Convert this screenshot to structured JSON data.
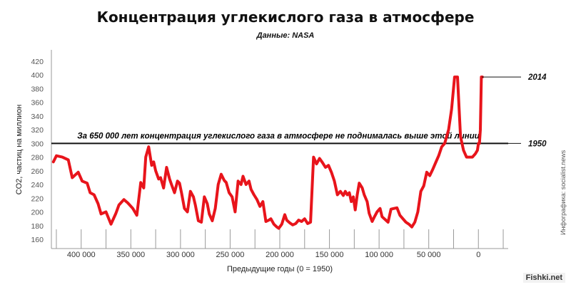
{
  "chart_data": {
    "type": "line",
    "title": "Концентрация углекислого газа в атмосфере",
    "subtitle": "Данные: NASA",
    "xlabel": "Предыдущие годы (0 = 1950)",
    "ylabel": "CO2, частиц на миллион",
    "xlim": [
      430000,
      -30000
    ],
    "ylim": [
      160,
      420
    ],
    "x_ticks": [
      400000,
      350000,
      300000,
      250000,
      200000,
      150000,
      100000,
      50000,
      0
    ],
    "x_tick_labels": [
      "400 000",
      "350 000",
      "300 000",
      "250 000",
      "200 000",
      "150 000",
      "100 000",
      "50 000",
      "0"
    ],
    "y_ticks": [
      160,
      180,
      200,
      220,
      240,
      260,
      280,
      300,
      320,
      340,
      360,
      380,
      400,
      420
    ],
    "grid": false,
    "color": "#e8141b",
    "reference_line": {
      "y": 300,
      "label": "За 650 000 лет концентрация углекислого газа в атмосфере не поднималась выше этой линии"
    },
    "markers": [
      {
        "label": "2014",
        "y": 397
      },
      {
        "label": "1950",
        "y": 300
      }
    ],
    "series": [
      {
        "x": [
          428000,
          425000,
          419000,
          413000,
          409000,
          403000,
          399000,
          394000,
          391000,
          387000,
          383000,
          380000,
          375000,
          370000,
          365000,
          362000,
          357000,
          353000,
          348000,
          344000,
          340000,
          337000,
          335000,
          332000,
          329000,
          327000,
          325000,
          322000,
          320000,
          317000,
          314000,
          311000,
          309000,
          306000,
          303000,
          301000,
          299000,
          296000,
          293000,
          290000,
          287000,
          285000,
          282000,
          279000,
          276000,
          273000,
          271000,
          268000,
          265000,
          262000,
          259000,
          256000,
          254000,
          251000,
          248000,
          245000,
          242000,
          239000,
          237000,
          234000,
          231000,
          229000,
          226000,
          223000,
          220000,
          217000,
          214000,
          211000,
          209000,
          206000,
          203000,
          201000,
          198000,
          195000,
          193000,
          190000,
          187000,
          184000,
          181000,
          178000,
          175000,
          172000,
          169000,
          166000,
          163000,
          160000,
          157000,
          154000,
          151000,
          148000,
          145000,
          142000,
          139000,
          136000,
          134000,
          132000,
          130000,
          128000,
          126000,
          124000,
          122000,
          120000,
          117000,
          115000,
          112000,
          110000,
          107000,
          105000,
          102000,
          99000,
          97000,
          94000,
          91000,
          88000,
          85000,
          82000,
          79000,
          76000,
          73000,
          70000,
          67000,
          64000,
          61000,
          58000,
          55000,
          52000,
          49000,
          46000,
          43000,
          40000,
          37000,
          34000,
          30000,
          27000,
          24000,
          21000,
          18000,
          15000,
          12000,
          9000,
          6000,
          3000,
          1000,
          0,
          -1000,
          -2000,
          -3000,
          -4000
        ],
        "y": [
          273,
          282,
          280,
          276,
          250,
          258,
          245,
          242,
          228,
          225,
          212,
          197,
          200,
          182,
          198,
          210,
          218,
          213,
          205,
          195,
          243,
          235,
          280,
          295,
          268,
          273,
          260,
          248,
          250,
          235,
          265,
          248,
          240,
          228,
          245,
          242,
          228,
          205,
          200,
          230,
          222,
          210,
          187,
          185,
          222,
          212,
          197,
          187,
          205,
          240,
          255,
          246,
          243,
          228,
          222,
          200,
          245,
          240,
          252,
          240,
          245,
          233,
          225,
          218,
          208,
          215,
          186,
          188,
          190,
          182,
          178,
          176,
          182,
          196,
          188,
          184,
          181,
          183,
          188,
          186,
          190,
          183,
          185,
          280,
          270,
          278,
          272,
          265,
          268,
          258,
          245,
          225,
          230,
          224,
          230,
          225,
          228,
          215,
          222,
          203,
          225,
          242,
          235,
          225,
          215,
          198,
          186,
          192,
          200,
          205,
          193,
          189,
          185,
          204,
          205,
          206,
          195,
          190,
          185,
          182,
          178,
          185,
          200,
          230,
          238,
          258,
          253,
          262,
          272,
          282,
          295,
          300,
          320,
          350,
          397,
          397,
          310,
          290,
          280,
          280,
          280,
          285,
          290,
          300,
          300,
          320,
          397,
          397
        ]
      }
    ]
  },
  "credit": "Инфографика: socialist.news",
  "watermark": "Fishki.net"
}
